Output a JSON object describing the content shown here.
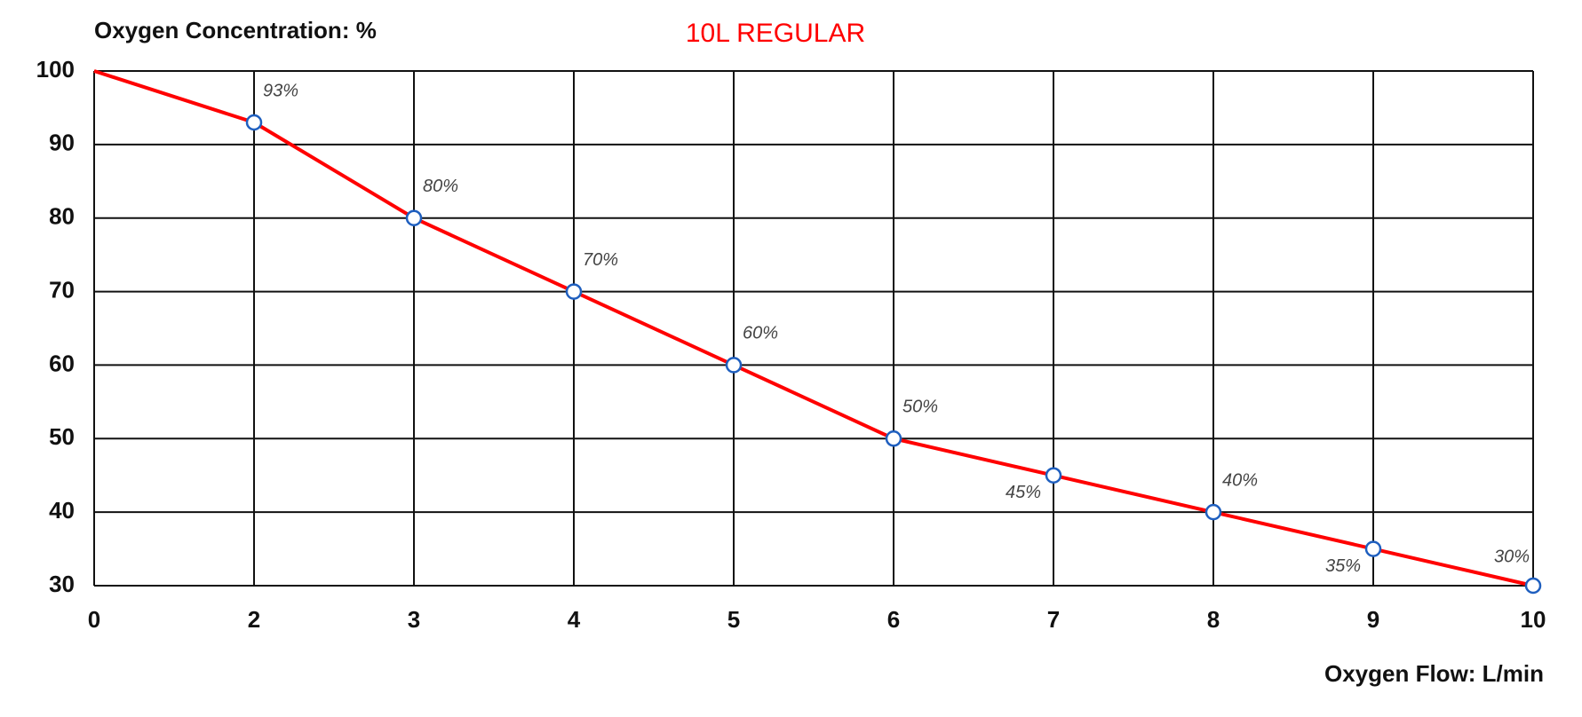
{
  "chart_data": {
    "type": "line",
    "title": "Oxygen Concentration: %",
    "subtitle": "10L REGULAR",
    "x_label": "Oxygen Flow: L/min",
    "categories": [
      "0",
      "2",
      "3",
      "4",
      "5",
      "6",
      "7",
      "8",
      "9",
      "10"
    ],
    "values": [
      100,
      93,
      80,
      70,
      60,
      50,
      45,
      40,
      35,
      30
    ],
    "value_labels": [
      null,
      "93%",
      "80%",
      "70%",
      "60%",
      "50%",
      "45%",
      "40%",
      "35%",
      "30%"
    ],
    "color": "#ff0000",
    "marker_color": "#1f5fbf",
    "ylim": [
      30,
      100
    ],
    "yticks": [
      30,
      40,
      50,
      60,
      70,
      80,
      90,
      100
    ],
    "grid": true
  }
}
